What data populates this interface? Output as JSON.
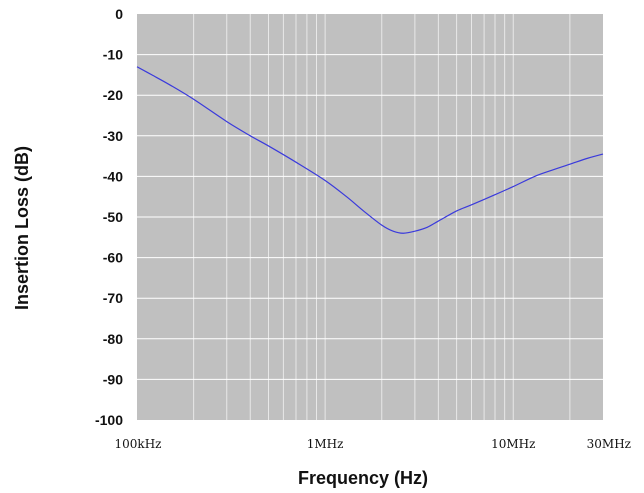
{
  "chart_data": {
    "type": "line",
    "title": "",
    "xlabel": "Frequency (Hz)",
    "ylabel": "Insertion Loss (dB)",
    "x_scale": "log",
    "xlim": [
      100000,
      30000000
    ],
    "ylim": [
      -100,
      0
    ],
    "grid": true,
    "y_ticks": [
      0,
      -10,
      -20,
      -30,
      -40,
      -50,
      -60,
      -70,
      -80,
      -90,
      -100
    ],
    "x_tick_labels": [
      {
        "value": 100000,
        "label": "100kHz"
      },
      {
        "value": 1000000,
        "label": "1MHz"
      },
      {
        "value": 10000000,
        "label": "10MHz"
      },
      {
        "value": 30000000,
        "label": "30MHz"
      }
    ],
    "series": [
      {
        "color": "#3a3adc",
        "x": [
          100000,
          120000,
          150000,
          200000,
          300000,
          400000,
          500000,
          700000,
          1000000,
          1300000,
          1600000,
          2000000,
          2300000,
          2600000,
          3000000,
          3500000,
          4000000,
          5000000,
          6000000,
          8000000,
          10000000,
          13000000,
          16000000,
          20000000,
          25000000,
          30000000
        ],
        "y": [
          -13,
          -15,
          -17.5,
          -21,
          -26.5,
          -30,
          -32.5,
          -36.5,
          -41,
          -45,
          -48.5,
          -52,
          -53.5,
          -54,
          -53.5,
          -52.5,
          -51,
          -48.5,
          -47,
          -44.5,
          -42.5,
          -40,
          -38.5,
          -37,
          -35.5,
          -34.5
        ]
      }
    ]
  }
}
